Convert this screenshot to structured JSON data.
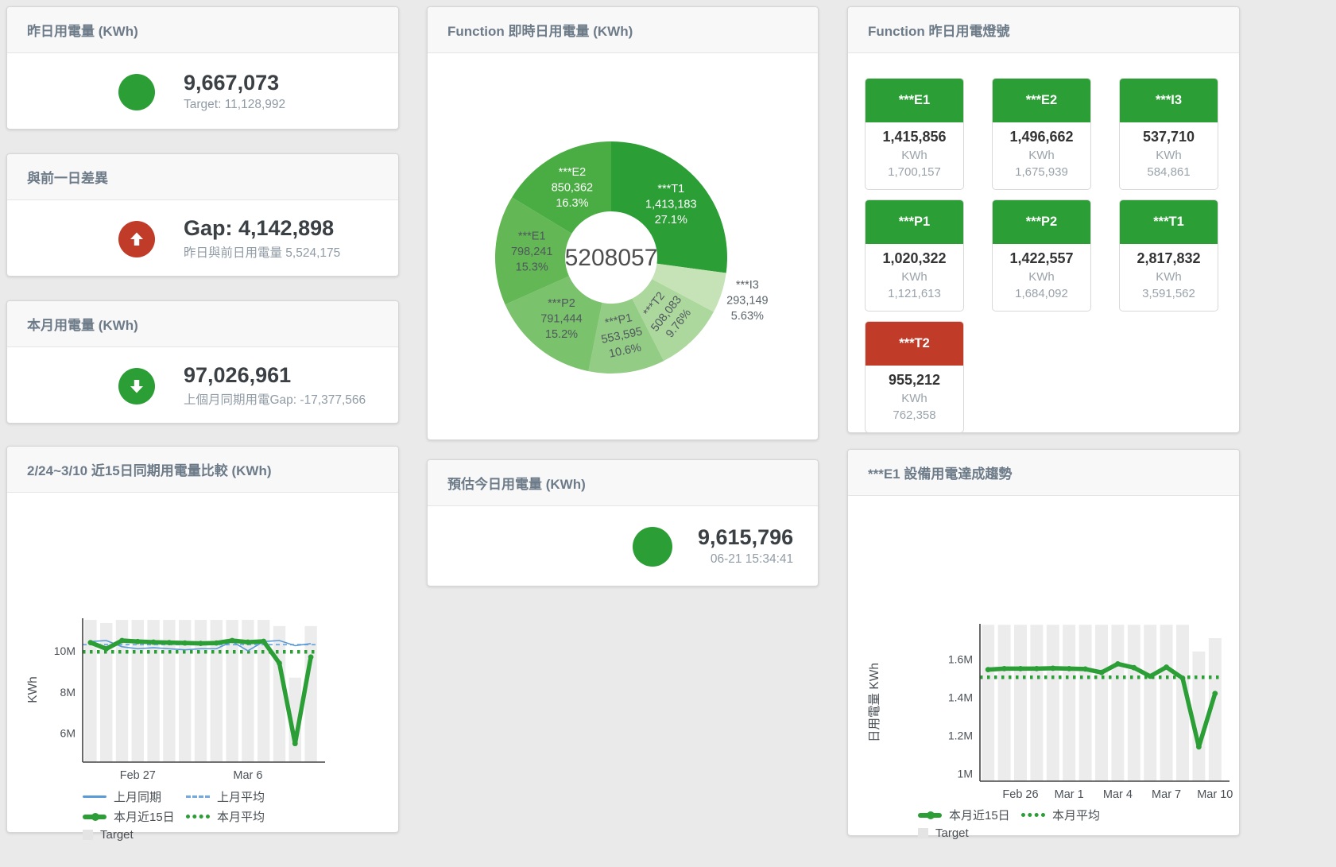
{
  "colors": {
    "green": "#2b9e36",
    "red": "#c03b28",
    "blue": "#5b9bd5",
    "blue_dash": "#74a9dd",
    "bar": "#ececec"
  },
  "cards": {
    "yesterday": {
      "title": "昨日用電量 (KWh)",
      "value": "9,667,073",
      "sub": "Target: 11,128,992"
    },
    "day_gap": {
      "title": "與前一日差異",
      "value": "Gap: 4,142,898",
      "sub": "昨日與前日用電量 5,524,175"
    },
    "month": {
      "title": "本月用電量 (KWh)",
      "value": "97,026,961",
      "sub": "上個月同期用電Gap: -17,377,566"
    },
    "estimate": {
      "title": "預估今日用電量 (KWh)",
      "value": "9,615,796",
      "sub": "06-21 15:34:41"
    },
    "donut": {
      "title": "Function 即時日用電量 (KWh)"
    },
    "lights": {
      "title": "Function 昨日用電燈號"
    },
    "compare": {
      "title": "2/24~3/10 近15日同期用電量比較 (KWh)"
    },
    "trend": {
      "title": "***E1 設備用電達成趨勢"
    }
  },
  "lights_tiles": [
    {
      "label": "***E1",
      "value": "1,415,856",
      "unit": "KWh",
      "sub": "1,700,157",
      "status": "green"
    },
    {
      "label": "***E2",
      "value": "1,496,662",
      "unit": "KWh",
      "sub": "1,675,939",
      "status": "green"
    },
    {
      "label": "***I3",
      "value": "537,710",
      "unit": "KWh",
      "sub": "584,861",
      "status": "green"
    },
    {
      "label": "***P1",
      "value": "1,020,322",
      "unit": "KWh",
      "sub": "1,121,613",
      "status": "green"
    },
    {
      "label": "***P2",
      "value": "1,422,557",
      "unit": "KWh",
      "sub": "1,684,092",
      "status": "green"
    },
    {
      "label": "***T1",
      "value": "2,817,832",
      "unit": "KWh",
      "sub": "3,591,562",
      "status": "green"
    },
    {
      "label": "***T2",
      "value": "955,212",
      "unit": "KWh",
      "sub": "762,358",
      "status": "red"
    }
  ],
  "chart_data": [
    {
      "id": "donut",
      "type": "pie",
      "title": "Function 即時日用電量 (KWh)",
      "center_total": "5208057",
      "legend_position": "none",
      "slices": [
        {
          "name": "***T1",
          "value": 1413183,
          "value_label": "1,413,183",
          "pct_label": "27.1%",
          "color": "#2b9e36",
          "text": "#ffffff",
          "label": "in",
          "rotate": 0
        },
        {
          "name": "***I3",
          "value": 293149,
          "value_label": "293,149",
          "pct_label": "5.63%",
          "color": "#c6e3b8",
          "text": "#5b646b",
          "label": "out",
          "rotate": 0
        },
        {
          "name": "***T2",
          "value": 508083,
          "value_label": "508,083",
          "pct_label": "9.76%",
          "color": "#acd89d",
          "text": "#50585e",
          "label": "in",
          "rotate": -52
        },
        {
          "name": "***P1",
          "value": 553595,
          "value_label": "553,595",
          "pct_label": "10.6%",
          "color": "#93cc84",
          "text": "#50585e",
          "label": "in",
          "rotate": -12
        },
        {
          "name": "***P2",
          "value": 791444,
          "value_label": "791,444",
          "pct_label": "15.2%",
          "color": "#7ac26c",
          "text": "#50585e",
          "label": "in",
          "rotate": 0
        },
        {
          "name": "***E1",
          "value": 798241,
          "value_label": "798,241",
          "pct_label": "15.3%",
          "color": "#63b755",
          "text": "#50585e",
          "label": "in",
          "rotate": 0
        },
        {
          "name": "***E2",
          "value": 850362,
          "value_label": "850,362",
          "pct_label": "16.3%",
          "color": "#4aad43",
          "text": "#ffffff",
          "label": "in",
          "rotate": 0
        }
      ]
    },
    {
      "id": "compare",
      "type": "line",
      "title": "2/24~3/10 近15日同期用電量比較 (KWh)",
      "ylabel": "KWh",
      "ylim": [
        4600000,
        11580000
      ],
      "grid": false,
      "legend_position": "bottom",
      "yticks": [
        {
          "v": 6000000,
          "label": "6M"
        },
        {
          "v": 8000000,
          "label": "8M"
        },
        {
          "v": 10000000,
          "label": "10M"
        }
      ],
      "xticks": [
        {
          "i": 3,
          "label": "Feb 27"
        },
        {
          "i": 10,
          "label": "Mar 6"
        }
      ],
      "target_bars": [
        11500000,
        11350000,
        11500000,
        11500000,
        11500000,
        11500000,
        11500000,
        11500000,
        11500000,
        11500000,
        11500000,
        11500000,
        11200000,
        8700000,
        11200000
      ],
      "series": [
        {
          "name": "上月同期",
          "style": "blue_solid",
          "values": [
            10450000,
            10500000,
            10200000,
            10100000,
            10150000,
            10100000,
            10050000,
            10100000,
            10100000,
            10450000,
            10000000,
            10450000,
            10500000,
            10250000,
            10350000
          ]
        },
        {
          "name": "上月平均",
          "style": "blue_dash",
          "const": 10300000
        },
        {
          "name": "本月近15日",
          "style": "green_thick",
          "values": [
            10400000,
            10100000,
            10500000,
            10450000,
            10420000,
            10400000,
            10380000,
            10360000,
            10380000,
            10500000,
            10420000,
            10460000,
            9400000,
            5500000,
            9700000
          ]
        },
        {
          "name": "本月平均",
          "style": "green_dot",
          "const": 9950000
        }
      ],
      "legend": [
        [
          "上月同期",
          "blue_solid"
        ],
        [
          "上月平均",
          "blue_dash"
        ],
        [
          "本月近15日",
          "green_thick"
        ],
        [
          "本月平均",
          "green_dot"
        ],
        [
          "Target",
          "target"
        ]
      ]
    },
    {
      "id": "trend",
      "type": "line",
      "title": "***E1 設備用電達成趨勢",
      "ylabel": "日用電量 KWh",
      "ylim": [
        960000,
        1785000
      ],
      "grid": false,
      "legend_position": "bottom",
      "yticks": [
        {
          "v": 1000000,
          "label": "1M"
        },
        {
          "v": 1200000,
          "label": "1.2M"
        },
        {
          "v": 1400000,
          "label": "1.4M"
        },
        {
          "v": 1600000,
          "label": "1.6M"
        }
      ],
      "xticks": [
        {
          "i": 2,
          "label": "Feb 26"
        },
        {
          "i": 5,
          "label": "Mar 1"
        },
        {
          "i": 8,
          "label": "Mar 4"
        },
        {
          "i": 11,
          "label": "Mar 7"
        },
        {
          "i": 14,
          "label": "Mar 10"
        }
      ],
      "target_bars": [
        1780000,
        1780000,
        1780000,
        1780000,
        1780000,
        1780000,
        1780000,
        1780000,
        1780000,
        1780000,
        1780000,
        1780000,
        1780000,
        1640000,
        1710000
      ],
      "series": [
        {
          "name": "本月近15日",
          "style": "green_thick",
          "values": [
            1545000,
            1550000,
            1550000,
            1550000,
            1552000,
            1550000,
            1548000,
            1530000,
            1575000,
            1555000,
            1510000,
            1558000,
            1500000,
            1140000,
            1420000
          ]
        },
        {
          "name": "本月平均",
          "style": "green_dot",
          "const": 1505000
        }
      ],
      "legend": [
        [
          "本月近15日",
          "green_thick"
        ],
        [
          "本月平均",
          "green_dot"
        ],
        [
          "Target",
          "target"
        ]
      ]
    }
  ]
}
